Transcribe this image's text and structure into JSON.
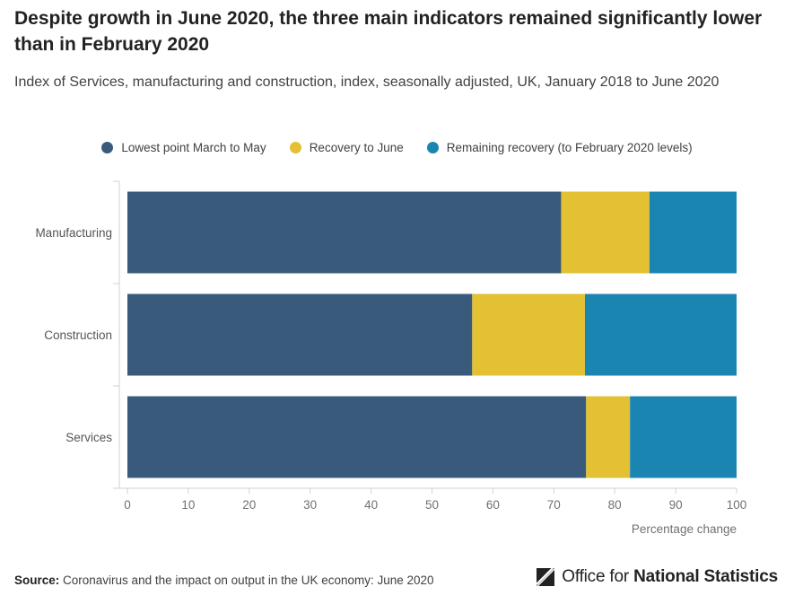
{
  "header": {
    "title": "Despite growth in June 2020, the three main indicators remained significantly lower than in February 2020",
    "subtitle": "Index of Services, manufacturing and construction, index, seasonally adjusted, UK, January 2018 to June 2020"
  },
  "legend": [
    {
      "label": "Lowest point March to May",
      "color": "#3a5a7b"
    },
    {
      "label": "Recovery to June",
      "color": "#e3c133"
    },
    {
      "label": "Remaining recovery (to February 2020 levels)",
      "color": "#1b85b2"
    }
  ],
  "chart_data": {
    "type": "bar",
    "orientation": "horizontal",
    "stacked": true,
    "categories": [
      "Manufacturing",
      "Construction",
      "Services"
    ],
    "series": [
      {
        "name": "Lowest point March to May",
        "color": "#3a5a7b",
        "values": [
          71.2,
          56.6,
          75.3
        ]
      },
      {
        "name": "Recovery to June",
        "color": "#e3c133",
        "values": [
          14.5,
          18.5,
          7.2
        ]
      },
      {
        "name": "Remaining recovery (to February 2020 levels)",
        "color": "#1b85b2",
        "values": [
          14.3,
          24.9,
          17.5
        ]
      }
    ],
    "xlim": [
      0,
      100
    ],
    "xticks": [
      0,
      10,
      20,
      30,
      40,
      50,
      60,
      70,
      80,
      90,
      100
    ],
    "xlabel": "Percentage change",
    "ylabel": ""
  },
  "footer": {
    "source_label": "Source:",
    "source_text": "Coronavirus and the impact on output in the UK economy: June 2020",
    "logo_text_regular": "Office for",
    "logo_text_bold": "National Statistics"
  }
}
